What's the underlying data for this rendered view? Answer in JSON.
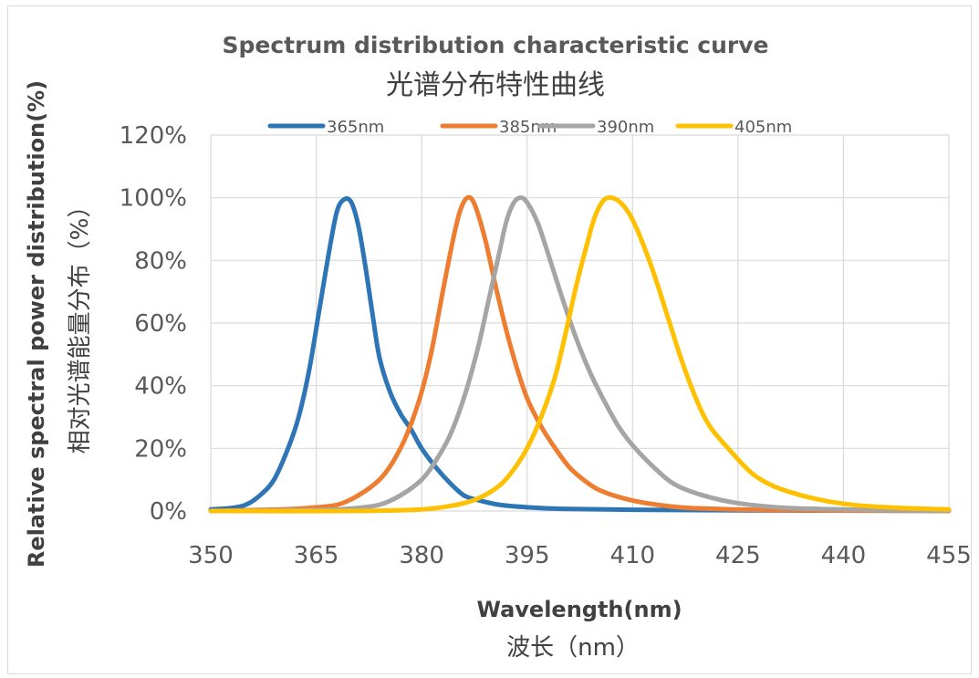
{
  "chart_data": {
    "type": "line",
    "title": "Spectrum distribution characteristic curve",
    "subtitle": "光谱分布特性曲线",
    "xlabel": "Wavelength(nm)",
    "xlabel_cn": "波长（nm）",
    "ylabel": "Relative spectral power distribution(%)",
    "ylabel_cn": "相对光谱能量分布（%）",
    "xlim": [
      350,
      455
    ],
    "ylim": [
      0,
      120
    ],
    "x_ticks": [
      "350",
      "365",
      "380",
      "395",
      "410",
      "425",
      "440",
      "455"
    ],
    "y_ticks": [
      "0%",
      "20%",
      "40%",
      "60%",
      "80%",
      "100%",
      "120%"
    ],
    "grid": "vertical and horizontal",
    "legend_position": "top",
    "series": [
      {
        "name": "365nm",
        "color": "#2e75b6",
        "points": [
          [
            350,
            0.5
          ],
          [
            353,
            1
          ],
          [
            355,
            2
          ],
          [
            357,
            5
          ],
          [
            359,
            10
          ],
          [
            361,
            20
          ],
          [
            362.5,
            30
          ],
          [
            364,
            45
          ],
          [
            365.5,
            65
          ],
          [
            367,
            85
          ],
          [
            368,
            96
          ],
          [
            369,
            99.5
          ],
          [
            370,
            98.5
          ],
          [
            371,
            91
          ],
          [
            372,
            78
          ],
          [
            373,
            63
          ],
          [
            374,
            49
          ],
          [
            375.5,
            38
          ],
          [
            377,
            31
          ],
          [
            378.5,
            26
          ],
          [
            380,
            20
          ],
          [
            382,
            14
          ],
          [
            384,
            9
          ],
          [
            386,
            5
          ],
          [
            388,
            3.5
          ],
          [
            391,
            2
          ],
          [
            395,
            1.2
          ],
          [
            400,
            0.7
          ],
          [
            410,
            0.4
          ],
          [
            425,
            0.2
          ],
          [
            455,
            0.1
          ]
        ]
      },
      {
        "name": "385nm",
        "color": "#ed7d31",
        "points": [
          [
            350,
            0
          ],
          [
            360,
            0.5
          ],
          [
            364,
            1
          ],
          [
            368,
            2
          ],
          [
            371,
            5
          ],
          [
            374,
            10
          ],
          [
            376,
            16
          ],
          [
            378,
            25
          ],
          [
            380,
            38
          ],
          [
            381.5,
            52
          ],
          [
            383,
            70
          ],
          [
            384.5,
            87
          ],
          [
            385.5,
            96
          ],
          [
            386.5,
            100
          ],
          [
            387.5,
            98
          ],
          [
            389,
            87
          ],
          [
            390.5,
            72
          ],
          [
            392,
            58
          ],
          [
            393.5,
            46
          ],
          [
            395,
            36
          ],
          [
            397,
            27
          ],
          [
            399,
            20
          ],
          [
            401,
            14
          ],
          [
            403,
            10
          ],
          [
            405,
            7
          ],
          [
            408,
            4.5
          ],
          [
            412,
            2.5
          ],
          [
            418,
            1
          ],
          [
            430,
            0.3
          ],
          [
            455,
            0
          ]
        ]
      },
      {
        "name": "390nm",
        "color": "#a5a5a5",
        "points": [
          [
            350,
            0
          ],
          [
            365,
            0.3
          ],
          [
            370,
            0.8
          ],
          [
            374,
            2
          ],
          [
            377,
            5
          ],
          [
            380,
            10
          ],
          [
            382,
            16
          ],
          [
            384,
            24
          ],
          [
            386,
            36
          ],
          [
            388,
            52
          ],
          [
            389.5,
            67
          ],
          [
            391,
            82
          ],
          [
            392,
            92
          ],
          [
            393,
            98
          ],
          [
            394,
            100
          ],
          [
            395,
            98.5
          ],
          [
            396.5,
            92
          ],
          [
            398,
            82
          ],
          [
            400,
            68
          ],
          [
            402,
            55
          ],
          [
            404,
            44
          ],
          [
            406,
            35
          ],
          [
            408,
            27
          ],
          [
            410,
            21
          ],
          [
            413,
            14
          ],
          [
            416,
            8.5
          ],
          [
            420,
            5
          ],
          [
            425,
            2.5
          ],
          [
            432,
            1
          ],
          [
            445,
            0.3
          ],
          [
            455,
            0.1
          ]
        ]
      },
      {
        "name": "405nm",
        "color": "#ffc000",
        "points": [
          [
            350,
            0
          ],
          [
            370,
            0
          ],
          [
            380,
            0.5
          ],
          [
            385,
            2
          ],
          [
            388,
            4
          ],
          [
            391,
            8
          ],
          [
            393,
            13
          ],
          [
            395,
            20
          ],
          [
            397,
            30
          ],
          [
            399,
            43
          ],
          [
            400.5,
            57
          ],
          [
            402,
            72
          ],
          [
            403.5,
            85
          ],
          [
            404.5,
            93
          ],
          [
            405.5,
            98
          ],
          [
            406.5,
            100
          ],
          [
            408,
            99
          ],
          [
            409.5,
            95
          ],
          [
            411,
            88
          ],
          [
            413,
            76
          ],
          [
            415,
            62
          ],
          [
            417,
            48
          ],
          [
            419,
            36
          ],
          [
            421,
            27
          ],
          [
            424,
            19
          ],
          [
            427,
            12
          ],
          [
            430,
            8
          ],
          [
            434,
            5
          ],
          [
            438,
            3
          ],
          [
            442,
            1.8
          ],
          [
            448,
            1
          ],
          [
            455,
            0.5
          ]
        ]
      }
    ]
  }
}
